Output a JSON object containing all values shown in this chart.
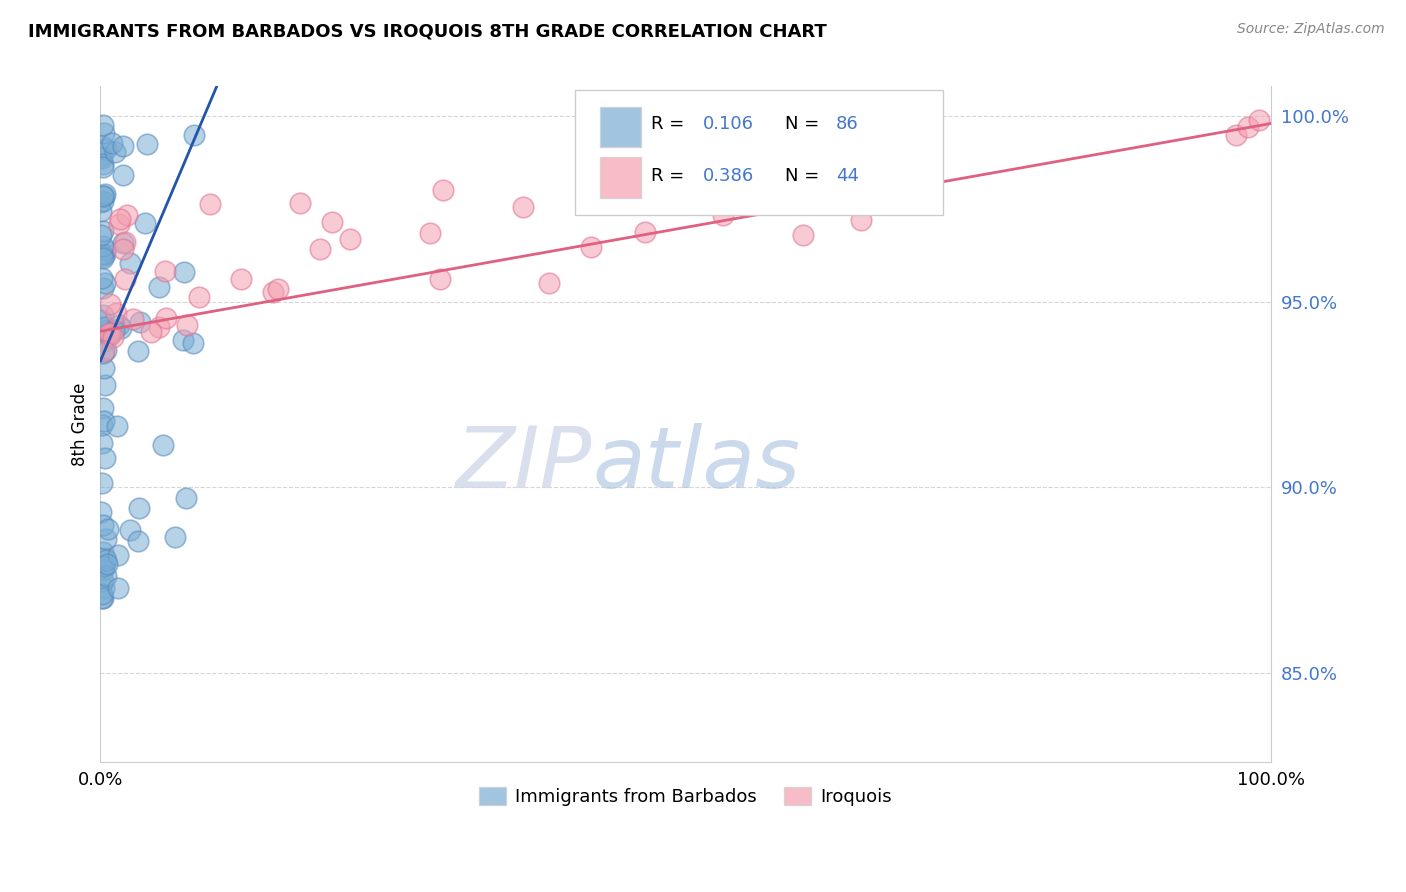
{
  "title": "IMMIGRANTS FROM BARBADOS VS IROQUOIS 8TH GRADE CORRELATION CHART",
  "source": "Source: ZipAtlas.com",
  "ylabel": "8th Grade",
  "xlim": [
    0.0,
    1.0
  ],
  "ylim": [
    0.826,
    1.008
  ],
  "yticks": [
    0.85,
    0.9,
    0.95,
    1.0
  ],
  "ytick_labels": [
    "85.0%",
    "90.0%",
    "95.0%",
    "100.0%"
  ],
  "xticks": [
    0.0,
    1.0
  ],
  "xtick_labels": [
    "0.0%",
    "100.0%"
  ],
  "blue_color": "#7aadd4",
  "blue_edge": "#5588bb",
  "pink_color": "#f4a0b0",
  "pink_edge": "#e07090",
  "blue_line_color": "#2255aa",
  "pink_line_color": "#e06080",
  "tick_color": "#4477cc",
  "watermark_zip": "ZIP",
  "watermark_atlas": "atlas",
  "legend_label1": "Immigrants from Barbados",
  "legend_label2": "Iroquois",
  "blue_line_x0": 0.0,
  "blue_line_y0": 0.934,
  "blue_line_x1": 0.09,
  "blue_line_y1": 1.001,
  "pink_line_x0": 0.0,
  "pink_line_x1": 1.0,
  "pink_line_y0": 0.942,
  "pink_line_y1": 0.998
}
